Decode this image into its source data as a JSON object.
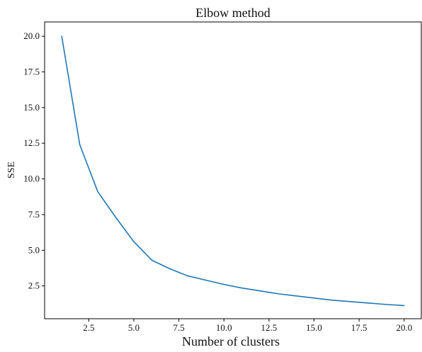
{
  "chart_data": {
    "type": "line",
    "title": "Elbow method",
    "xlabel": "Number of clusters",
    "ylabel": "SSE",
    "xlim": [
      0.05,
      20.95
    ],
    "ylim": [
      0.2,
      21.0
    ],
    "xticks": [
      2.5,
      5.0,
      7.5,
      10.0,
      12.5,
      15.0,
      17.5,
      20.0
    ],
    "xtick_labels": [
      "2.5",
      "5.0",
      "7.5",
      "10.0",
      "12.5",
      "15.0",
      "17.5",
      "20.0"
    ],
    "yticks": [
      2.5,
      5.0,
      7.5,
      10.0,
      12.5,
      15.0,
      17.5,
      20.0
    ],
    "ytick_labels": [
      "2.5",
      "5.0",
      "7.5",
      "10.0",
      "12.5",
      "15.0",
      "17.5",
      "20.0"
    ],
    "grid": false,
    "series": [
      {
        "color": "#1f77b4",
        "x": [
          1,
          2,
          3,
          4,
          5,
          6,
          7,
          8,
          9,
          10,
          11,
          12,
          13,
          14,
          15,
          16,
          17,
          18,
          19,
          20
        ],
        "y": [
          20.0,
          12.4,
          9.1,
          7.3,
          5.6,
          4.3,
          3.7,
          3.2,
          2.9,
          2.6,
          2.35,
          2.15,
          1.95,
          1.8,
          1.65,
          1.5,
          1.4,
          1.3,
          1.2,
          1.12
        ]
      }
    ]
  }
}
